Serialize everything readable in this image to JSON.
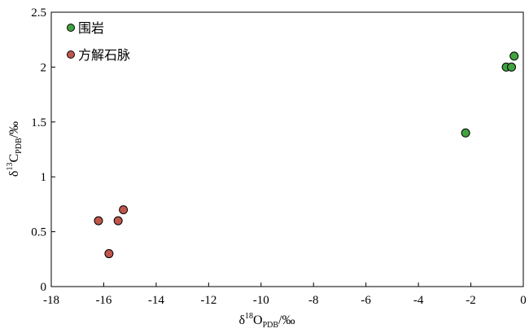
{
  "chart_data": {
    "type": "scatter",
    "xlabel": {
      "base": "δ",
      "sup": "18",
      "main": "O",
      "sub": "PDB",
      "tail": "/‰"
    },
    "ylabel": {
      "base": "δ",
      "sup": "13",
      "main": "C",
      "sub": "PDB",
      "tail": "/‰"
    },
    "xlim": [
      -18,
      0
    ],
    "ylim": [
      0,
      2.5
    ],
    "xticks": [
      -18,
      -16,
      -14,
      -12,
      -10,
      -8,
      -6,
      -4,
      -2,
      0
    ],
    "yticks": [
      0,
      0.5,
      1,
      1.5,
      2,
      2.5
    ],
    "ytick_labels": [
      "0",
      "0.5",
      "1",
      "1.5",
      "2",
      "2.5"
    ],
    "grid": false,
    "legend_position": "top-left",
    "series": [
      {
        "name": "围岩",
        "color": "#3fa33f",
        "points": [
          [
            -2.2,
            1.4
          ],
          [
            -0.65,
            2.0
          ],
          [
            -0.45,
            2.0
          ],
          [
            -0.35,
            2.1
          ]
        ]
      },
      {
        "name": "方解石脉",
        "color": "#c0564b",
        "points": [
          [
            -16.2,
            0.6
          ],
          [
            -15.8,
            0.3
          ],
          [
            -15.45,
            0.6
          ],
          [
            -15.25,
            0.7
          ]
        ]
      }
    ]
  }
}
